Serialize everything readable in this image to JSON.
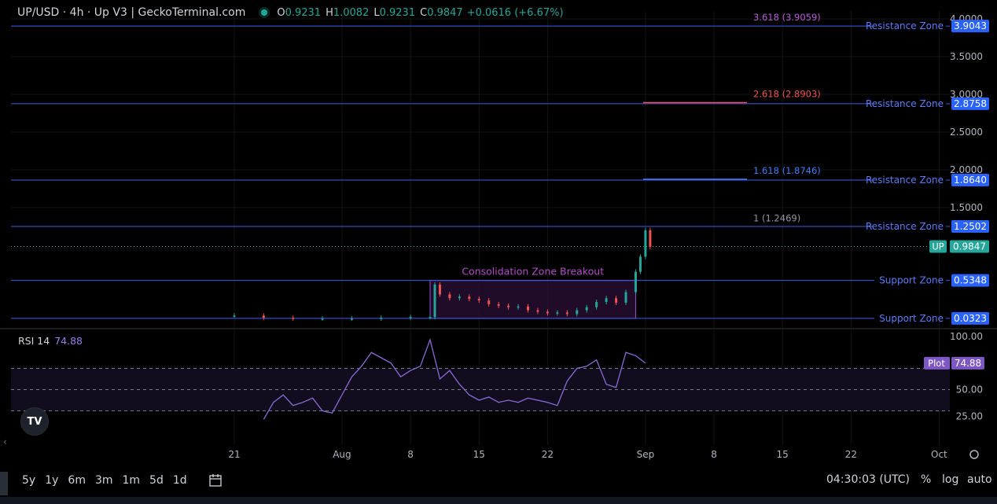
{
  "header": {
    "title": "UP/USD · 4h · Up V3 | GeckoTerminal.com",
    "o_label": "O",
    "o_value": "0.9231",
    "h_label": "H",
    "h_value": "1.0082",
    "l_label": "L",
    "l_value": "0.9231",
    "c_label": "C",
    "c_value": "0.9847",
    "change": "+0.0616 (+6.67%)"
  },
  "colors": {
    "background": "#000000",
    "up": "#26a69a",
    "down": "#ef5350",
    "level_line": "#3f5be6",
    "level_text": "#5b7cf5",
    "rsi_line": "#8a6ad6",
    "rsi_label_bg": "#7e57c2",
    "zone_border": "#9c4dcc",
    "zone_fill": "#2b0f35",
    "zone_text": "#b44dc9",
    "fib_3618": "#b55bd6",
    "fib_2618": "#ef5350",
    "fib_1618": "#3f7cf5",
    "fib_1": "#9598a1",
    "price_dotted": "#26a69a"
  },
  "chart_data": [
    {
      "type": "candlestick",
      "title": "UP/USD · 4h · Up V3 | GeckoTerminal.com",
      "y_axis_ticks": [
        "4.0000",
        "3.5000",
        "3.0000",
        "2.5000",
        "2.0000",
        "1.5000"
      ],
      "y_axis_tick_values": [
        4.0,
        3.5,
        3.0,
        2.5,
        2.0,
        1.5
      ],
      "ylim": [
        0.0,
        4.0
      ],
      "x_axis_ticks": [
        "21",
        "Aug",
        "8",
        "15",
        "22",
        "Sep",
        "8",
        "15",
        "22",
        "Oct"
      ],
      "x_axis_tick_dates": [
        "2024-07-21",
        "2024-08-01",
        "2024-08-08",
        "2024-08-15",
        "2024-08-22",
        "2024-09-01",
        "2024-09-08",
        "2024-09-15",
        "2024-09-22",
        "2024-10-01"
      ],
      "price_series": {
        "name": "UP",
        "dates": [
          "2024-07-21",
          "2024-07-24",
          "2024-07-27",
          "2024-07-30",
          "2024-08-02",
          "2024-08-05",
          "2024-08-08",
          "2024-08-10",
          "2024-08-10",
          "2024-08-11",
          "2024-08-12",
          "2024-08-13",
          "2024-08-14",
          "2024-08-15",
          "2024-08-16",
          "2024-08-17",
          "2024-08-18",
          "2024-08-19",
          "2024-08-20",
          "2024-08-21",
          "2024-08-22",
          "2024-08-23",
          "2024-08-24",
          "2024-08-25",
          "2024-08-26",
          "2024-08-27",
          "2024-08-28",
          "2024-08-29",
          "2024-08-30",
          "2024-08-31",
          "2024-08-31",
          "2024-09-01",
          "2024-09-01"
        ],
        "values": [
          0.07,
          0.04,
          0.03,
          0.03,
          0.03,
          0.04,
          0.05,
          0.05,
          0.48,
          0.35,
          0.3,
          0.32,
          0.29,
          0.27,
          0.22,
          0.2,
          0.18,
          0.19,
          0.14,
          0.12,
          0.1,
          0.11,
          0.09,
          0.14,
          0.18,
          0.25,
          0.3,
          0.24,
          0.38,
          0.65,
          0.85,
          1.2,
          0.98
        ]
      },
      "current_price": {
        "label": "UP",
        "value": "0.9847",
        "numeric": 0.9847
      },
      "levels": [
        {
          "label": "Resistance Zone",
          "value": "3.9043",
          "numeric": 3.9043
        },
        {
          "label": "Resistance Zone",
          "value": "2.8758",
          "numeric": 2.8758
        },
        {
          "label": "Resistance Zone",
          "value": "1.8640",
          "numeric": 1.864
        },
        {
          "label": "Resistance Zone",
          "value": "1.2502",
          "numeric": 1.2502
        },
        {
          "label": "Support Zone",
          "value": "0.5348",
          "numeric": 0.5348
        },
        {
          "label": "Support Zone",
          "value": "0.0323",
          "numeric": 0.0323
        }
      ],
      "fib_levels": [
        {
          "label": "3.618 (3.9059)",
          "numeric": 3.9059,
          "color_key": "fib_3618",
          "has_line": false
        },
        {
          "label": "2.618 (2.8903)",
          "numeric": 2.8903,
          "color_key": "fib_2618",
          "has_line": true
        },
        {
          "label": "1.618 (1.8746)",
          "numeric": 1.8746,
          "color_key": "fib_1618",
          "has_line": true
        },
        {
          "label": "1 (1.2469)",
          "numeric": 1.2469,
          "color_key": "fib_1",
          "has_line": false
        }
      ],
      "annotations": [
        {
          "text": "Consolidation Zone Breakout",
          "x_start": "2024-08-10",
          "x_end": "2024-08-31",
          "y_low": 0.0323,
          "y_high": 0.5348
        }
      ]
    },
    {
      "type": "line",
      "title": "RSI 14",
      "current_value": "74.88",
      "y_axis_ticks": [
        "100.00",
        "50.00",
        "25.00"
      ],
      "y_axis_tick_values": [
        100,
        50,
        25
      ],
      "ylim": [
        20,
        100
      ],
      "bands": [
        70,
        50,
        30
      ],
      "label": {
        "text": "Plot",
        "value": "74.88",
        "numeric": 74.88
      },
      "series": {
        "name": "RSI",
        "dates": [
          "2024-07-24",
          "2024-07-25",
          "2024-07-26",
          "2024-07-27",
          "2024-07-28",
          "2024-07-29",
          "2024-07-30",
          "2024-07-31",
          "2024-08-01",
          "2024-08-02",
          "2024-08-03",
          "2024-08-04",
          "2024-08-05",
          "2024-08-06",
          "2024-08-07",
          "2024-08-08",
          "2024-08-09",
          "2024-08-10",
          "2024-08-11",
          "2024-08-12",
          "2024-08-13",
          "2024-08-14",
          "2024-08-15",
          "2024-08-16",
          "2024-08-17",
          "2024-08-18",
          "2024-08-19",
          "2024-08-20",
          "2024-08-21",
          "2024-08-22",
          "2024-08-23",
          "2024-08-24",
          "2024-08-25",
          "2024-08-26",
          "2024-08-27",
          "2024-08-28",
          "2024-08-29",
          "2024-08-30",
          "2024-08-31",
          "2024-09-01"
        ],
        "values": [
          22,
          38,
          45,
          35,
          38,
          42,
          30,
          28,
          45,
          62,
          72,
          85,
          80,
          75,
          62,
          68,
          72,
          97,
          60,
          68,
          55,
          45,
          40,
          43,
          38,
          40,
          38,
          42,
          40,
          38,
          35,
          58,
          70,
          72,
          78,
          55,
          52,
          85,
          82,
          75
        ]
      }
    }
  ],
  "toolbar": {
    "timeframes": [
      "5y",
      "1y",
      "6m",
      "3m",
      "1m",
      "5d",
      "1d"
    ],
    "clock": "04:30:03 (UTC)",
    "percent": "%",
    "log": "log",
    "auto": "auto"
  }
}
